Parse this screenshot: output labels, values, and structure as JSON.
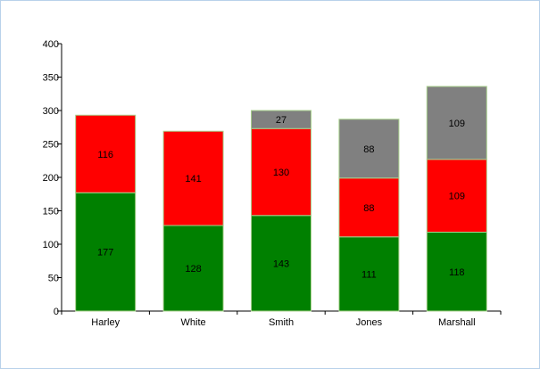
{
  "chart_data": {
    "type": "bar",
    "stacked": true,
    "categories": [
      "Harley",
      "White",
      "Smith",
      "Jones",
      "Marshall"
    ],
    "series": [
      {
        "color": "#008000",
        "values": [
          177,
          128,
          143,
          111,
          118
        ]
      },
      {
        "color": "#ff0000",
        "values": [
          116,
          141,
          130,
          88,
          109
        ]
      },
      {
        "color": "#808080",
        "values": [
          null,
          null,
          27,
          88,
          109
        ]
      }
    ],
    "ylim": [
      0,
      400
    ],
    "yticks": [
      0,
      50,
      100,
      150,
      200,
      250,
      300,
      350,
      400
    ],
    "grid": false,
    "data_labels": true,
    "bar_border_color": "#a8d08d"
  }
}
